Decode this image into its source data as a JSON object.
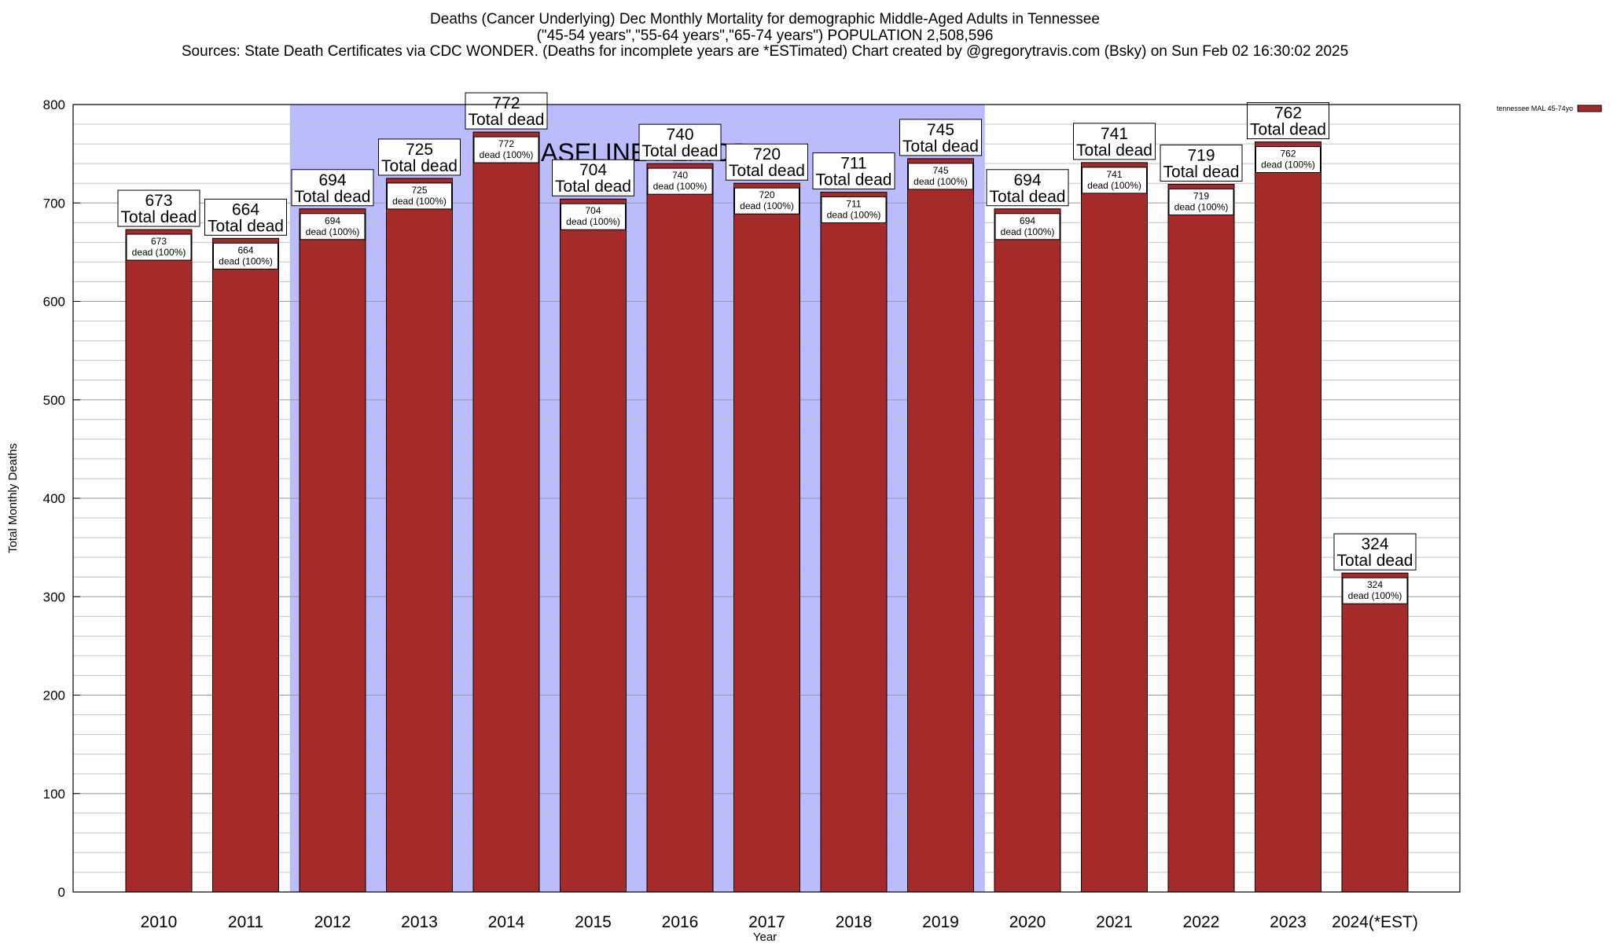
{
  "chart_data": {
    "type": "bar",
    "title_lines": [
      "Deaths (Cancer Underlying) Dec Monthly Mortality for demographic Middle-Aged Adults in Tennessee",
      "(\"45-54 years\",\"55-64 years\",\"65-74 years\") POPULATION 2,508,596",
      "Sources: State Death Certificates via CDC WONDER. (Deaths for incomplete years are *ESTimated)              Chart created by @gregorytravis.com (Bsky) on Sun Feb 02 16:30:02 2025"
    ],
    "xlabel": "Year",
    "ylabel": "Total Monthly Deaths",
    "ylim": [
      0,
      800
    ],
    "yticks": [
      0,
      100,
      200,
      300,
      400,
      500,
      600,
      700,
      800
    ],
    "grid": true,
    "categories": [
      "2010",
      "2011",
      "2012",
      "2013",
      "2014",
      "2015",
      "2016",
      "2017",
      "2018",
      "2019",
      "2020",
      "2021",
      "2022",
      "2023",
      "2024(*EST)"
    ],
    "series": [
      {
        "name": "tennessee MAL 45-74yo",
        "color": "#a52a2a",
        "values": [
          673,
          664,
          694,
          725,
          772,
          704,
          740,
          720,
          711,
          745,
          694,
          741,
          719,
          762,
          324
        ]
      }
    ],
    "total_label": "Total dead",
    "inner_label": "dead (100%)",
    "baseline": {
      "label": "BASELINE PERIOD",
      "start": "2012",
      "end": "2019",
      "color": "#bbbbff"
    },
    "legend_position": "top-right"
  }
}
